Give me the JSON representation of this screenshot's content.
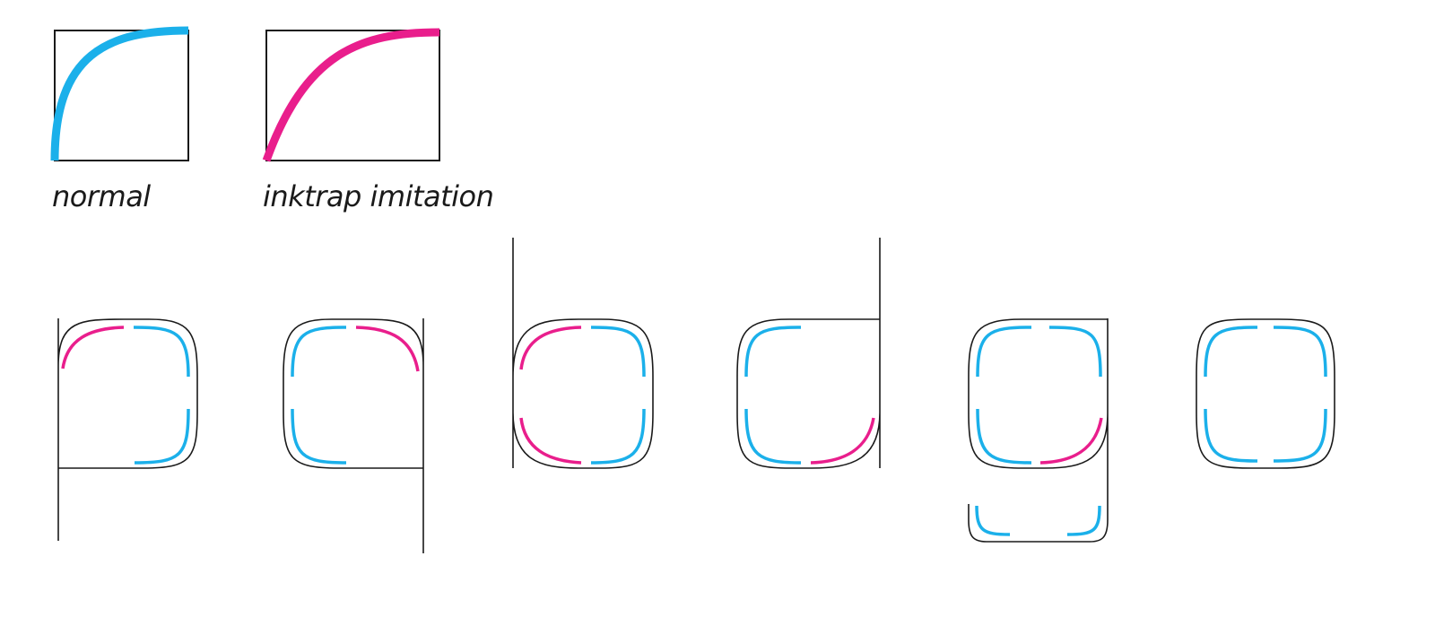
{
  "legend": {
    "normal_caption": "normal",
    "inktrap_caption": "inktrap imitation"
  },
  "colors": {
    "normal": "#1bb0ea",
    "inktrap": "#e91e8c",
    "outline": "#1a1a1a",
    "background": "#ffffff"
  },
  "letters": [
    {
      "name": "p",
      "corners": {
        "top_left": "inktrap",
        "top_right": "normal",
        "bottom_right": "normal"
      },
      "stem": "left-descender"
    },
    {
      "name": "q",
      "corners": {
        "top_left": "normal",
        "top_right": "inktrap",
        "bottom_left": "normal"
      },
      "stem": "right-descender"
    },
    {
      "name": "b",
      "corners": {
        "top_left": "inktrap",
        "top_right": "normal",
        "bottom_left": "inktrap",
        "bottom_right": "normal"
      },
      "stem": "left-ascender"
    },
    {
      "name": "d",
      "corners": {
        "top_left": "normal",
        "bottom_left": "normal",
        "bottom_right": "inktrap"
      },
      "stem": "right-ascender"
    },
    {
      "name": "g",
      "corners": {
        "top_left": "normal",
        "top_right": "normal",
        "bottom_left": "normal",
        "bottom_right": "inktrap"
      },
      "stem": "right-descender-hook"
    },
    {
      "name": "o",
      "corners": {
        "top_left": "normal",
        "top_right": "normal",
        "bottom_left": "normal",
        "bottom_right": "normal"
      },
      "stem": "none"
    }
  ]
}
